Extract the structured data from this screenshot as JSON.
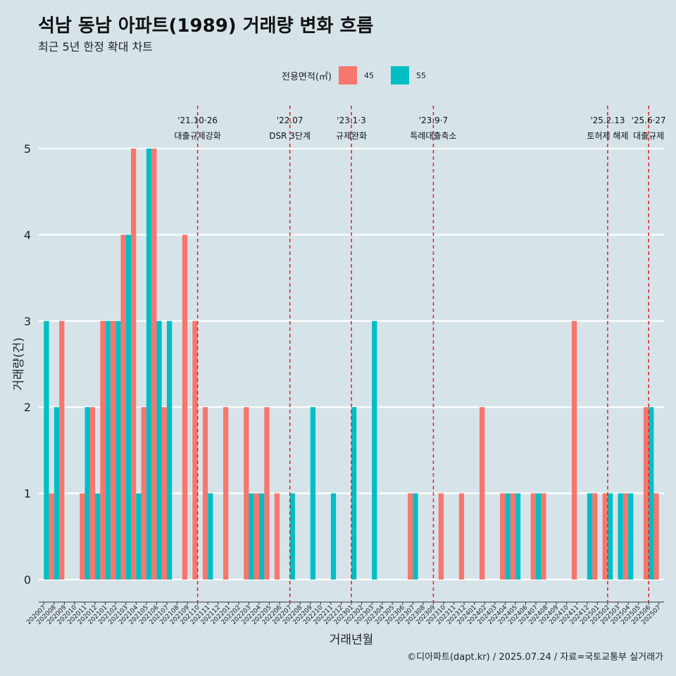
{
  "header": {
    "title": "석남 동남 아파트(1989) 거래량 변화 흐름",
    "subtitle": "최근 5년 한정 확대 차트"
  },
  "legend": {
    "title": "전용면적(㎡)",
    "items": [
      {
        "label": "45",
        "color": "#f8766d"
      },
      {
        "label": "55",
        "color": "#00bfc4"
      }
    ]
  },
  "caption": "©디아파트(dapt.kr) / 2025.07.24 / 자료=국토교통부 실거래가",
  "chart_data": {
    "type": "bar",
    "xlabel": "거래년월",
    "ylabel": "거래량(건)",
    "ylim": [
      0,
      5
    ],
    "yticks": [
      "0",
      "1",
      "2",
      "3",
      "4",
      "5"
    ],
    "categories": [
      "202007",
      "202008",
      "202009",
      "202010",
      "202011",
      "202012",
      "202101",
      "202102",
      "202103",
      "202104",
      "202105",
      "202106",
      "202107",
      "202108",
      "202109",
      "202110",
      "202111",
      "202112",
      "202201",
      "202202",
      "202203",
      "202204",
      "202205",
      "202206",
      "202207",
      "202208",
      "202209",
      "202210",
      "202211",
      "202212",
      "202301",
      "202302",
      "202303",
      "202304",
      "202305",
      "202306",
      "202307",
      "202308",
      "202309",
      "202310",
      "202311",
      "202312",
      "202401",
      "202402",
      "202403",
      "202404",
      "202405",
      "202406",
      "202407",
      "202408",
      "202409",
      "202410",
      "202411",
      "202412",
      "202501",
      "202502",
      "202503",
      "202504",
      "202505",
      "202506",
      "202507"
    ],
    "series": [
      {
        "name": "45",
        "color": "#f8766d",
        "values": [
          0,
          1,
          3,
          0,
          1,
          2,
          3,
          3,
          4,
          5,
          2,
          5,
          2,
          0,
          4,
          3,
          2,
          0,
          2,
          0,
          2,
          1,
          2,
          1,
          0,
          0,
          0,
          0,
          0,
          0,
          0,
          0,
          0,
          0,
          0,
          0,
          1,
          0,
          0,
          1,
          0,
          1,
          0,
          2,
          0,
          1,
          1,
          0,
          1,
          1,
          0,
          0,
          3,
          0,
          1,
          1,
          0,
          1,
          0,
          2,
          1
        ]
      },
      {
        "name": "55",
        "color": "#00bfc4",
        "values": [
          3,
          2,
          0,
          0,
          2,
          1,
          3,
          3,
          4,
          1,
          5,
          3,
          3,
          0,
          0,
          0,
          1,
          0,
          0,
          0,
          1,
          1,
          0,
          0,
          1,
          0,
          2,
          0,
          1,
          0,
          2,
          0,
          3,
          0,
          0,
          0,
          1,
          0,
          0,
          0,
          0,
          0,
          0,
          0,
          0,
          1,
          1,
          0,
          1,
          0,
          0,
          0,
          0,
          1,
          0,
          1,
          1,
          1,
          0,
          2,
          0
        ]
      }
    ],
    "annotations": [
      {
        "at": "202110",
        "date": "'21.10·26",
        "label": "대출규제강화"
      },
      {
        "at": "202207",
        "date": "'22.07",
        "label": "DSR 3단계"
      },
      {
        "at": "202301",
        "date": "'23.1·3",
        "label": "규제완화"
      },
      {
        "at": "202309",
        "date": "'23.9·7",
        "label": "특례대출축소"
      },
      {
        "at": "202502",
        "date": "'25.2.13",
        "label": "토허제 해제"
      },
      {
        "at": "202506",
        "date": "'25.6·27",
        "label": "대출규제"
      }
    ]
  }
}
